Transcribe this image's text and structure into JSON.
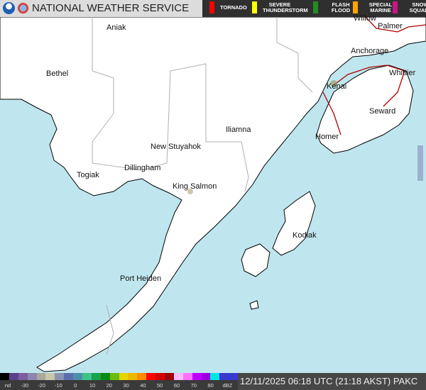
{
  "header": {
    "title": "NATIONAL WEATHER SERVICE",
    "logos": [
      "noaa-logo",
      "nws-logo"
    ]
  },
  "warnings": [
    {
      "label": "TORNADO",
      "color": "#ff0000"
    },
    {
      "label": "SEVERE THUNDERSTORM",
      "color": "#ffff00"
    },
    {
      "label": "FLASH FLOOD",
      "color": "#228b22"
    },
    {
      "label": "SPECIAL MARINE",
      "color": "#ffa500"
    },
    {
      "label": "SNOW SQUALL",
      "color": "#c71585"
    }
  ],
  "places": [
    "Aniak",
    "Bethel",
    "Willow",
    "Palmer",
    "Anchorage",
    "Kenai",
    "Whittier",
    "Seward",
    "Iliamna",
    "Homer",
    "New Stuyahok",
    "Dillingham",
    "Togiak",
    "King Salmon",
    "Kodiak",
    "Port Heiden"
  ],
  "map_colors": {
    "water": "#bfe6ee",
    "land": "#ffffff",
    "borders": "#b0b0b0",
    "roads": "#b00000"
  },
  "legend": {
    "ticks": [
      "nd",
      "-30",
      "-20",
      "-10",
      "0",
      "10",
      "20",
      "30",
      "40",
      "50",
      "60",
      "70",
      "80",
      "dBZ"
    ],
    "colors": [
      "#000000",
      "#5a3f8a",
      "#7a5ea0",
      "#8e86b0",
      "#a9a7a0",
      "#c9c8a8",
      "#8a93b0",
      "#5b6fb0",
      "#4a8fa8",
      "#3cc28a",
      "#19a34a",
      "#0a8a10",
      "#6cbc10",
      "#e5d400",
      "#eeb800",
      "#ff8a00",
      "#ff0000",
      "#d40000",
      "#a00000",
      "#ffbaff",
      "#ff70ff",
      "#c000ff",
      "#9a00e0",
      "#00e6e6",
      "#3a3ad0",
      "#3a3ad0"
    ]
  },
  "timestamp": "12/11/2025 06:18 UTC (21:18 AKST) PAKC"
}
